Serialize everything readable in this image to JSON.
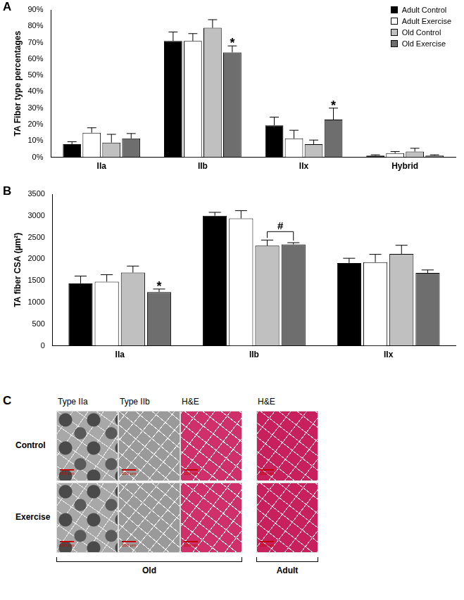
{
  "chart_data": [
    {
      "type": "bar",
      "panel_label": "A",
      "y_label": "TA Fiber type percentages",
      "categories": [
        "IIa",
        "IIb",
        "IIx",
        "Hybrid"
      ],
      "series": [
        {
          "name": "Adult Control",
          "color": "#000000",
          "values": [
            8,
            71,
            19.5,
            1
          ],
          "errors": [
            1.5,
            5.5,
            5,
            0.5
          ]
        },
        {
          "name": "Adult Exercise",
          "color": "#ffffff",
          "values": [
            15,
            71,
            11.5,
            2.5
          ],
          "errors": [
            3,
            4.5,
            5,
            1
          ]
        },
        {
          "name": "Old Control",
          "color": "#c0c0c0",
          "values": [
            9,
            79,
            8,
            3.5
          ],
          "errors": [
            5,
            5,
            2.5,
            2
          ]
        },
        {
          "name": "Old Exercise",
          "color": "#6e6e6e",
          "values": [
            11.5,
            64,
            23,
            1
          ],
          "errors": [
            3,
            4,
            7,
            0.5
          ]
        }
      ],
      "ylim": [
        0,
        90
      ],
      "yticks": [
        {
          "value": 0,
          "label": "0%"
        },
        {
          "value": 10,
          "label": "10%"
        },
        {
          "value": 20,
          "label": "20%"
        },
        {
          "value": 30,
          "label": "30%"
        },
        {
          "value": 40,
          "label": "40%"
        },
        {
          "value": 50,
          "label": "50%"
        },
        {
          "value": 60,
          "label": "60%"
        },
        {
          "value": 70,
          "label": "70%"
        },
        {
          "value": 80,
          "label": "80%"
        },
        {
          "value": 90,
          "label": "90%"
        }
      ],
      "grid": false,
      "legend": "upper right",
      "annotations": [
        {
          "text": "*",
          "category": "IIb",
          "series": [
            "Old Exercise"
          ]
        },
        {
          "text": "*",
          "category": "IIx",
          "series": [
            "Old Exercise"
          ]
        }
      ]
    },
    {
      "type": "bar",
      "panel_label": "B",
      "y_label": "TA fiber CSA (µm²)",
      "categories": [
        "IIa",
        "IIb",
        "IIx"
      ],
      "series": [
        {
          "name": "Adult Control",
          "color": "#000000",
          "values": [
            1440,
            3000,
            1910
          ],
          "errors": [
            170,
            80,
            110
          ]
        },
        {
          "name": "Adult Exercise",
          "color": "#ffffff",
          "values": [
            1480,
            2940,
            1930
          ],
          "errors": [
            160,
            180,
            180
          ]
        },
        {
          "name": "Old Control",
          "color": "#c0c0c0",
          "values": [
            1690,
            2310,
            2120
          ],
          "errors": [
            150,
            130,
            200
          ]
        },
        {
          "name": "Old Exercise",
          "color": "#6e6e6e",
          "values": [
            1240,
            2340,
            1680
          ],
          "errors": [
            70,
            40,
            70
          ]
        }
      ],
      "ylim": [
        0,
        3500
      ],
      "yticks": [
        0,
        500,
        1000,
        1500,
        2000,
        2500,
        3000,
        3500
      ],
      "grid": false,
      "annotations": [
        {
          "text": "*",
          "category": "IIa",
          "series": [
            "Old Exercise"
          ]
        },
        {
          "text": "#",
          "category": "IIb",
          "series": [
            "Old Control",
            "Old Exercise"
          ]
        }
      ]
    }
  ],
  "panel_c": {
    "panel_label": "C",
    "columns": [
      "Type IIa",
      "Type IIb",
      "H&E",
      "H&E"
    ],
    "rows": [
      "Control",
      "Exercise"
    ],
    "groups": [
      {
        "label": "Old",
        "columns": 3
      },
      {
        "label": "Adult",
        "columns": 1
      }
    ],
    "scale_bar": "100 µm"
  }
}
